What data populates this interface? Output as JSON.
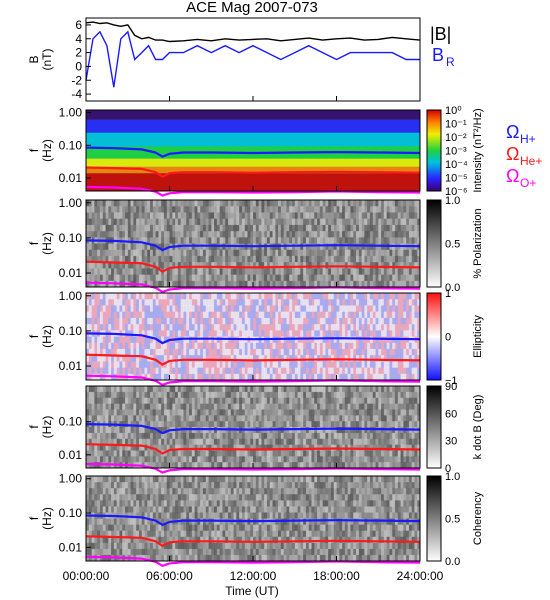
{
  "chart_data": {
    "title": "ACE Mag 2007-073",
    "type": "line",
    "xlabel": "Time (UT)",
    "x_ticks": [
      "00:00:00",
      "06:00:00",
      "12:00:00",
      "18:00:00",
      "24:00:00"
    ],
    "xlim": [
      0,
      24
    ],
    "panels": [
      {
        "id": "field",
        "type": "line",
        "ylabel": [
          "B",
          "(nT)"
        ],
        "ylim": [
          -5,
          7
        ],
        "y_ticks": [
          "6",
          "4",
          "2",
          "0",
          "-2",
          "-4"
        ],
        "legend": [
          "|B|",
          "B",
          "R"
        ],
        "series": [
          {
            "name": "|B|",
            "color": "#000000",
            "x": [
              0,
              0.5,
              1,
              1.5,
              2,
              2.5,
              3,
              3.5,
              4,
              4.5,
              5,
              5.5,
              6,
              7,
              8,
              9,
              10,
              11,
              12,
              13,
              14,
              15,
              16,
              17,
              18,
              19,
              20,
              21,
              22,
              23,
              24
            ],
            "y": [
              6.3,
              6.4,
              6.2,
              6.3,
              6.0,
              5.8,
              6.0,
              4.5,
              4.0,
              4.2,
              3.8,
              3.8,
              3.6,
              3.7,
              3.9,
              3.7,
              4.0,
              3.8,
              3.9,
              4.0,
              3.7,
              3.9,
              4.1,
              3.8,
              4.0,
              4.1,
              3.8,
              3.9,
              4.2,
              4.0,
              3.8
            ]
          },
          {
            "name": "B_R",
            "color": "#1a1aff",
            "x": [
              0,
              0.5,
              1,
              1.5,
              2,
              2.5,
              3,
              3.5,
              4,
              4.5,
              5,
              5.5,
              6,
              7,
              8,
              9,
              10,
              11,
              12,
              13,
              14,
              15,
              16,
              17,
              18,
              19,
              20,
              21,
              22,
              23,
              24
            ],
            "y": [
              -2,
              4,
              5,
              3,
              -3,
              4,
              5,
              1,
              2,
              3,
              1,
              1,
              2,
              2,
              3,
              2,
              3,
              2,
              3,
              2,
              1,
              2,
              3,
              2,
              1,
              2,
              2,
              2,
              2,
              1,
              1
            ]
          }
        ]
      },
      {
        "id": "intensity",
        "type": "heatmap",
        "ylabel": [
          "f",
          "(Hz)"
        ],
        "ylim": [
          0.004,
          1.2
        ],
        "y_ticks": [
          "1.00",
          "0.10",
          "0.01"
        ],
        "colorbar": {
          "label": "Intensity (nT²/Hz)",
          "ticks": [
            "10⁰",
            "10⁻¹",
            "10⁻²",
            "10⁻³",
            "10⁻⁴",
            "10⁻⁵",
            "10⁻⁶"
          ],
          "scale": "rainbow"
        }
      },
      {
        "id": "polarization",
        "type": "heatmap",
        "ylabel": [
          "f",
          "(Hz)"
        ],
        "ylim": [
          0.004,
          1.2
        ],
        "y_ticks": [
          "1.00",
          "0.10",
          "0.01"
        ],
        "colorbar": {
          "label": "% Polarization",
          "ticks": [
            "1.0",
            "0.5",
            "0.0"
          ],
          "scale": "gray"
        }
      },
      {
        "id": "ellipticity",
        "type": "heatmap",
        "ylabel": [
          "f",
          "(Hz)"
        ],
        "ylim": [
          0.004,
          1.2
        ],
        "y_ticks": [
          "1.00",
          "0.10",
          "0.01"
        ],
        "colorbar": {
          "label": "Ellipticity",
          "ticks": [
            "1",
            "0",
            "−1"
          ],
          "scale": "bwr"
        }
      },
      {
        "id": "kdotb",
        "type": "heatmap",
        "ylabel": [
          "f",
          "(Hz)"
        ],
        "ylim": [
          0.004,
          1.2
        ],
        "y_ticks": [
          "0.10",
          "0.01"
        ],
        "colorbar": {
          "label": "k dot B (Deg)",
          "ticks": [
            "90",
            "60",
            "30",
            "0"
          ],
          "scale": "gray"
        }
      },
      {
        "id": "coherency",
        "type": "heatmap",
        "ylabel": [
          "f",
          "(Hz)"
        ],
        "ylim": [
          0.004,
          1.2
        ],
        "y_ticks": [
          "1.00",
          "0.10",
          "0.01"
        ],
        "colorbar": {
          "label": "Coherency",
          "ticks": [
            "1.0",
            "0.5",
            "0.0"
          ],
          "scale": "gray"
        }
      }
    ],
    "gyro_lines": {
      "legend": [
        "Ω",
        "H+",
        "He+",
        "O+"
      ],
      "series": [
        {
          "name": "H+",
          "color": "#1a1aff",
          "x": [
            0,
            2,
            4,
            5,
            5.5,
            6,
            7,
            9,
            12,
            15,
            18,
            21,
            24
          ],
          "f": [
            0.085,
            0.082,
            0.075,
            0.06,
            0.045,
            0.055,
            0.06,
            0.06,
            0.058,
            0.06,
            0.062,
            0.06,
            0.058
          ]
        },
        {
          "name": "He+",
          "color": "#ff1a1a",
          "x": [
            0,
            2,
            4,
            5,
            5.5,
            6,
            7,
            9,
            12,
            15,
            18,
            21,
            24
          ],
          "f": [
            0.021,
            0.02,
            0.019,
            0.015,
            0.011,
            0.014,
            0.015,
            0.015,
            0.0145,
            0.015,
            0.0155,
            0.015,
            0.0145
          ]
        },
        {
          "name": "O+",
          "color": "#ff00ff",
          "x": [
            0,
            2,
            4,
            5,
            5.5,
            6,
            7,
            9,
            12,
            15,
            18,
            21,
            24
          ],
          "f": [
            0.0053,
            0.0051,
            0.0047,
            0.0038,
            0.0029,
            0.0034,
            0.0037,
            0.0037,
            0.0036,
            0.0037,
            0.0039,
            0.0037,
            0.0036
          ]
        }
      ]
    }
  }
}
